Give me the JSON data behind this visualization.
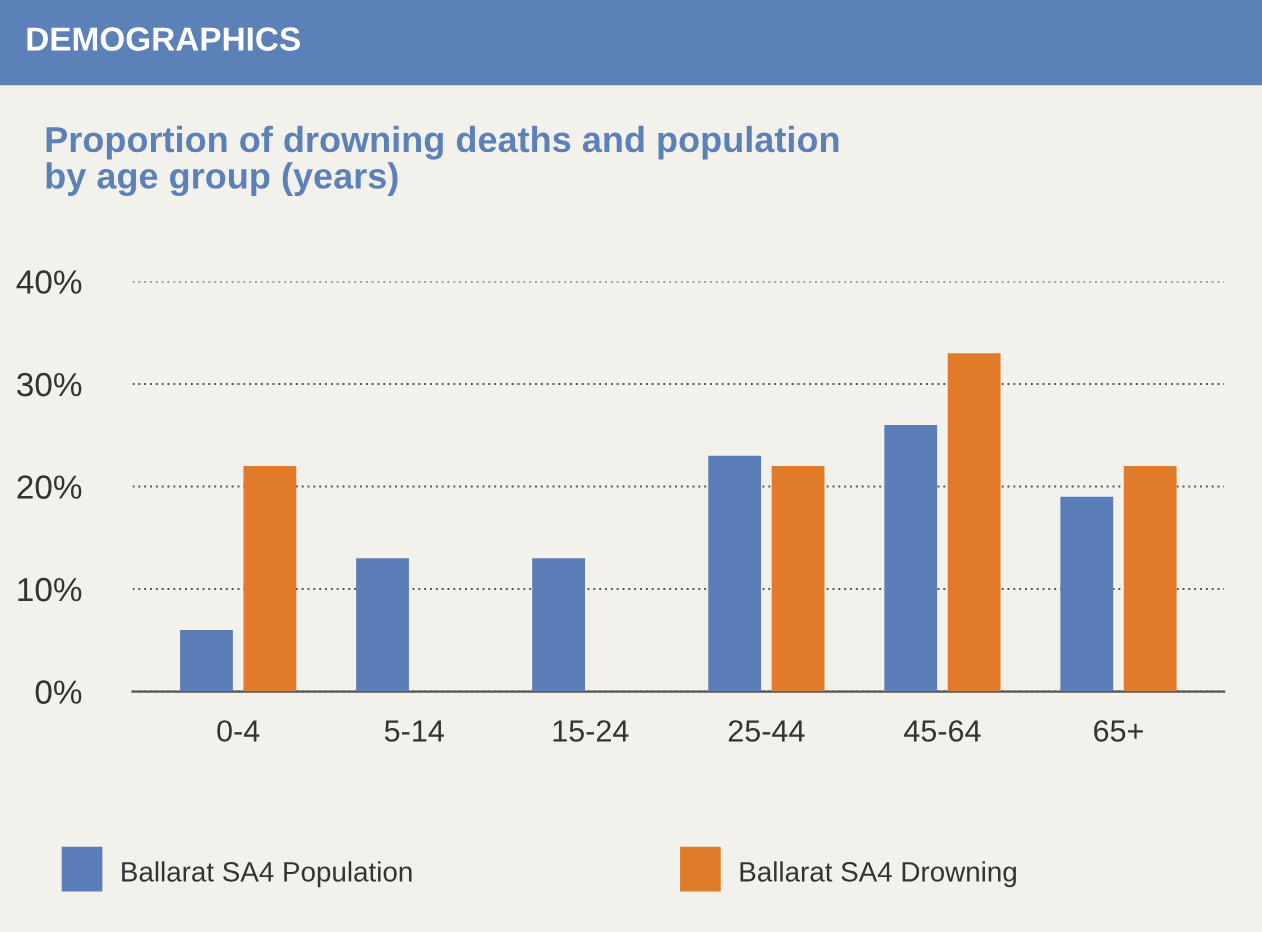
{
  "chart_data": {
    "type": "bar",
    "title": "DEMOGRAPHICS",
    "subtitle": "Proportion of drowning deaths and population\nby age group (years)",
    "categories": [
      "0-4",
      "5-14",
      "15-24",
      "25-44",
      "45-64",
      "65+"
    ],
    "series": [
      {
        "name": "Ballarat SA4 Population",
        "color": "#5b7db8",
        "values": [
          6,
          13,
          13,
          23,
          26,
          19
        ]
      },
      {
        "name": "Ballarat SA4 Drowning",
        "color": "#e07b2a",
        "values": [
          22,
          0,
          0,
          22,
          33,
          22
        ]
      }
    ],
    "ylim": [
      0,
      40
    ],
    "yticks": [
      {
        "value": 0,
        "label": "0%"
      },
      {
        "value": 10,
        "label": "10%"
      },
      {
        "value": 20,
        "label": "20%"
      },
      {
        "value": 30,
        "label": "30%"
      },
      {
        "value": 40,
        "label": "40%"
      }
    ],
    "grid": "y",
    "legend": "bottom"
  }
}
